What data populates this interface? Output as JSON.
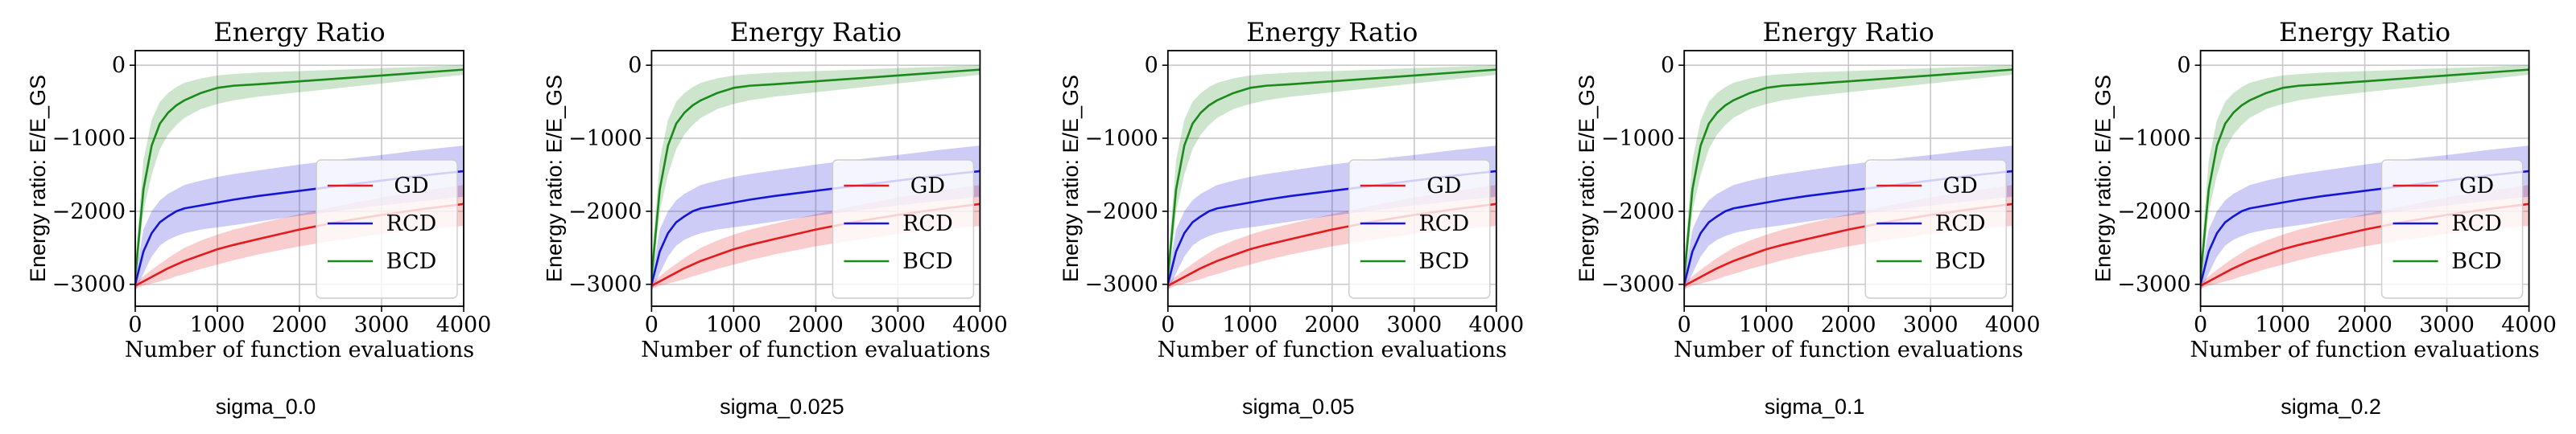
{
  "figure": {
    "panel_titles": [
      "sigma_0.0",
      "sigma_0.025",
      "sigma_0.05",
      "sigma_0.1",
      "sigma_0.2"
    ]
  },
  "colors": {
    "GD": "#e41a1c",
    "RCD": "#1515d4",
    "BCD": "#1a8a1a",
    "grid": "#c8c8c8"
  },
  "chart_data": [
    {
      "type": "line",
      "title": "Energy Ratio",
      "xlabel": "Number of function evaluations",
      "ylabel": "Energy ratio: E/E_GS",
      "xlim": [
        0,
        4000
      ],
      "ylim": [
        -3300,
        200
      ],
      "xticks": [
        0,
        1000,
        2000,
        3000,
        4000
      ],
      "yticks": [
        0,
        -1000,
        -2000,
        -3000
      ],
      "grid": true,
      "legend": "lower-right",
      "x": [
        0,
        100,
        200,
        300,
        400,
        500,
        600,
        800,
        1000,
        1200,
        1500,
        2000,
        2500,
        3000,
        3500,
        4000
      ],
      "series": [
        {
          "name": "GD",
          "values": [
            -3020,
            -2960,
            -2900,
            -2840,
            -2780,
            -2730,
            -2680,
            -2600,
            -2520,
            -2460,
            -2380,
            -2250,
            -2140,
            -2050,
            -1970,
            -1900
          ],
          "lower": [
            -3060,
            -3020,
            -2990,
            -2960,
            -2930,
            -2890,
            -2860,
            -2790,
            -2730,
            -2670,
            -2590,
            -2480,
            -2390,
            -2310,
            -2250,
            -2200
          ],
          "upper": [
            -2980,
            -2890,
            -2800,
            -2720,
            -2640,
            -2570,
            -2500,
            -2400,
            -2320,
            -2250,
            -2170,
            -2040,
            -1920,
            -1810,
            -1720,
            -1640
          ]
        },
        {
          "name": "RCD",
          "values": [
            -3000,
            -2550,
            -2300,
            -2150,
            -2070,
            -2000,
            -1960,
            -1920,
            -1880,
            -1840,
            -1790,
            -1720,
            -1650,
            -1580,
            -1510,
            -1450
          ],
          "lower": [
            -3100,
            -2850,
            -2620,
            -2470,
            -2390,
            -2340,
            -2300,
            -2250,
            -2220,
            -2190,
            -2140,
            -2060,
            -1990,
            -1920,
            -1860,
            -1800
          ],
          "upper": [
            -2900,
            -2250,
            -2000,
            -1850,
            -1760,
            -1700,
            -1640,
            -1580,
            -1530,
            -1490,
            -1440,
            -1360,
            -1290,
            -1230,
            -1160,
            -1100
          ]
        },
        {
          "name": "BCD",
          "values": [
            -2900,
            -1700,
            -1100,
            -800,
            -650,
            -550,
            -480,
            -380,
            -310,
            -280,
            -260,
            -220,
            -180,
            -140,
            -100,
            -60
          ],
          "lower": [
            -3000,
            -2000,
            -1500,
            -1150,
            -950,
            -820,
            -720,
            -600,
            -530,
            -480,
            -430,
            -370,
            -310,
            -250,
            -190,
            -130
          ],
          "upper": [
            -2700,
            -1300,
            -750,
            -500,
            -380,
            -300,
            -240,
            -180,
            -140,
            -120,
            -100,
            -80,
            -60,
            -40,
            -20,
            0
          ]
        }
      ]
    },
    {
      "type": "line",
      "title": "Energy Ratio",
      "xlabel": "Number of function evaluations",
      "ylabel": "Energy ratio: E/E_GS",
      "xlim": [
        0,
        4000
      ],
      "ylim": [
        -3300,
        200
      ],
      "xticks": [
        0,
        1000,
        2000,
        3000,
        4000
      ],
      "yticks": [
        0,
        -1000,
        -2000,
        -3000
      ],
      "grid": true,
      "legend": "lower-right",
      "x": [
        0,
        100,
        200,
        300,
        400,
        500,
        600,
        800,
        1000,
        1200,
        1500,
        2000,
        2500,
        3000,
        3500,
        4000
      ],
      "series": [
        {
          "name": "GD",
          "values": [
            -3020,
            -2960,
            -2900,
            -2840,
            -2780,
            -2730,
            -2680,
            -2600,
            -2520,
            -2460,
            -2380,
            -2250,
            -2140,
            -2050,
            -1970,
            -1900
          ],
          "lower": [
            -3060,
            -3020,
            -2990,
            -2960,
            -2930,
            -2890,
            -2860,
            -2790,
            -2730,
            -2670,
            -2590,
            -2480,
            -2390,
            -2310,
            -2250,
            -2200
          ],
          "upper": [
            -2980,
            -2890,
            -2800,
            -2720,
            -2640,
            -2570,
            -2500,
            -2400,
            -2320,
            -2250,
            -2170,
            -2040,
            -1920,
            -1810,
            -1720,
            -1640
          ]
        },
        {
          "name": "RCD",
          "values": [
            -3000,
            -2550,
            -2300,
            -2150,
            -2070,
            -2000,
            -1960,
            -1920,
            -1880,
            -1840,
            -1790,
            -1720,
            -1650,
            -1580,
            -1510,
            -1450
          ],
          "lower": [
            -3100,
            -2850,
            -2620,
            -2470,
            -2390,
            -2340,
            -2300,
            -2250,
            -2220,
            -2190,
            -2140,
            -2060,
            -1990,
            -1920,
            -1860,
            -1800
          ],
          "upper": [
            -2900,
            -2250,
            -2000,
            -1850,
            -1760,
            -1700,
            -1640,
            -1580,
            -1530,
            -1490,
            -1440,
            -1360,
            -1290,
            -1230,
            -1160,
            -1100
          ]
        },
        {
          "name": "BCD",
          "values": [
            -2900,
            -1700,
            -1100,
            -800,
            -650,
            -550,
            -480,
            -380,
            -310,
            -280,
            -260,
            -220,
            -180,
            -140,
            -100,
            -60
          ],
          "lower": [
            -3000,
            -2000,
            -1500,
            -1150,
            -950,
            -820,
            -720,
            -600,
            -530,
            -480,
            -430,
            -370,
            -310,
            -250,
            -190,
            -130
          ],
          "upper": [
            -2700,
            -1300,
            -750,
            -500,
            -380,
            -300,
            -240,
            -180,
            -140,
            -120,
            -100,
            -80,
            -60,
            -40,
            -20,
            0
          ]
        }
      ]
    },
    {
      "type": "line",
      "title": "Energy Ratio",
      "xlabel": "Number of function evaluations",
      "ylabel": "Energy ratio: E/E_GS",
      "xlim": [
        0,
        4000
      ],
      "ylim": [
        -3300,
        200
      ],
      "xticks": [
        0,
        1000,
        2000,
        3000,
        4000
      ],
      "yticks": [
        0,
        -1000,
        -2000,
        -3000
      ],
      "grid": true,
      "legend": "lower-right",
      "x": [
        0,
        100,
        200,
        300,
        400,
        500,
        600,
        800,
        1000,
        1200,
        1500,
        2000,
        2500,
        3000,
        3500,
        4000
      ],
      "series": [
        {
          "name": "GD",
          "values": [
            -3020,
            -2960,
            -2900,
            -2840,
            -2780,
            -2730,
            -2680,
            -2600,
            -2520,
            -2460,
            -2380,
            -2250,
            -2140,
            -2050,
            -1970,
            -1900
          ],
          "lower": [
            -3060,
            -3020,
            -2990,
            -2960,
            -2930,
            -2890,
            -2860,
            -2790,
            -2730,
            -2670,
            -2590,
            -2480,
            -2390,
            -2310,
            -2250,
            -2200
          ],
          "upper": [
            -2980,
            -2890,
            -2800,
            -2720,
            -2640,
            -2570,
            -2500,
            -2400,
            -2320,
            -2250,
            -2170,
            -2040,
            -1920,
            -1810,
            -1720,
            -1640
          ]
        },
        {
          "name": "RCD",
          "values": [
            -3000,
            -2550,
            -2300,
            -2150,
            -2070,
            -2000,
            -1960,
            -1920,
            -1880,
            -1840,
            -1790,
            -1720,
            -1650,
            -1580,
            -1510,
            -1450
          ],
          "lower": [
            -3100,
            -2850,
            -2620,
            -2470,
            -2390,
            -2340,
            -2300,
            -2250,
            -2220,
            -2190,
            -2140,
            -2060,
            -1990,
            -1920,
            -1860,
            -1800
          ],
          "upper": [
            -2900,
            -2250,
            -2000,
            -1850,
            -1760,
            -1700,
            -1640,
            -1580,
            -1530,
            -1490,
            -1440,
            -1360,
            -1290,
            -1230,
            -1160,
            -1100
          ]
        },
        {
          "name": "BCD",
          "values": [
            -2900,
            -1700,
            -1100,
            -800,
            -650,
            -550,
            -480,
            -380,
            -310,
            -280,
            -260,
            -220,
            -180,
            -140,
            -100,
            -60
          ],
          "lower": [
            -3000,
            -2000,
            -1500,
            -1150,
            -950,
            -820,
            -720,
            -600,
            -530,
            -480,
            -430,
            -370,
            -310,
            -250,
            -190,
            -130
          ],
          "upper": [
            -2700,
            -1300,
            -750,
            -500,
            -380,
            -300,
            -240,
            -180,
            -140,
            -120,
            -100,
            -80,
            -60,
            -40,
            -20,
            0
          ]
        }
      ]
    },
    {
      "type": "line",
      "title": "Energy Ratio",
      "xlabel": "Number of function evaluations",
      "ylabel": "Energy ratio: E/E_GS",
      "xlim": [
        0,
        4000
      ],
      "ylim": [
        -3300,
        200
      ],
      "xticks": [
        0,
        1000,
        2000,
        3000,
        4000
      ],
      "yticks": [
        0,
        -1000,
        -2000,
        -3000
      ],
      "grid": true,
      "legend": "lower-right",
      "x": [
        0,
        100,
        200,
        300,
        400,
        500,
        600,
        800,
        1000,
        1200,
        1500,
        2000,
        2500,
        3000,
        3500,
        4000
      ],
      "series": [
        {
          "name": "GD",
          "values": [
            -3020,
            -2960,
            -2900,
            -2840,
            -2780,
            -2730,
            -2680,
            -2600,
            -2520,
            -2460,
            -2380,
            -2250,
            -2140,
            -2050,
            -1970,
            -1900
          ],
          "lower": [
            -3060,
            -3020,
            -2990,
            -2960,
            -2930,
            -2890,
            -2860,
            -2790,
            -2730,
            -2670,
            -2590,
            -2480,
            -2390,
            -2310,
            -2250,
            -2200
          ],
          "upper": [
            -2980,
            -2890,
            -2800,
            -2720,
            -2640,
            -2570,
            -2500,
            -2400,
            -2320,
            -2250,
            -2170,
            -2040,
            -1920,
            -1810,
            -1720,
            -1640
          ]
        },
        {
          "name": "RCD",
          "values": [
            -3000,
            -2550,
            -2300,
            -2150,
            -2070,
            -2000,
            -1960,
            -1920,
            -1880,
            -1840,
            -1790,
            -1720,
            -1650,
            -1580,
            -1510,
            -1450
          ],
          "lower": [
            -3100,
            -2850,
            -2620,
            -2470,
            -2390,
            -2340,
            -2300,
            -2250,
            -2220,
            -2190,
            -2140,
            -2060,
            -1990,
            -1920,
            -1860,
            -1800
          ],
          "upper": [
            -2900,
            -2250,
            -2000,
            -1850,
            -1760,
            -1700,
            -1640,
            -1580,
            -1530,
            -1490,
            -1440,
            -1360,
            -1290,
            -1230,
            -1160,
            -1100
          ]
        },
        {
          "name": "BCD",
          "values": [
            -2900,
            -1700,
            -1100,
            -800,
            -650,
            -550,
            -480,
            -380,
            -310,
            -280,
            -260,
            -220,
            -180,
            -140,
            -100,
            -60
          ],
          "lower": [
            -3000,
            -2000,
            -1500,
            -1150,
            -950,
            -820,
            -720,
            -600,
            -530,
            -480,
            -430,
            -370,
            -310,
            -250,
            -190,
            -130
          ],
          "upper": [
            -2700,
            -1300,
            -750,
            -500,
            -380,
            -300,
            -240,
            -180,
            -140,
            -120,
            -100,
            -80,
            -60,
            -40,
            -20,
            0
          ]
        }
      ]
    },
    {
      "type": "line",
      "title": "Energy Ratio",
      "xlabel": "Number of function evaluations",
      "ylabel": "Energy ratio: E/E_GS",
      "xlim": [
        0,
        4000
      ],
      "ylim": [
        -3300,
        200
      ],
      "xticks": [
        0,
        1000,
        2000,
        3000,
        4000
      ],
      "yticks": [
        0,
        -1000,
        -2000,
        -3000
      ],
      "grid": true,
      "legend": "lower-right",
      "x": [
        0,
        100,
        200,
        300,
        400,
        500,
        600,
        800,
        1000,
        1200,
        1500,
        2000,
        2500,
        3000,
        3500,
        4000
      ],
      "series": [
        {
          "name": "GD",
          "values": [
            -3020,
            -2960,
            -2900,
            -2840,
            -2780,
            -2730,
            -2680,
            -2600,
            -2520,
            -2460,
            -2380,
            -2250,
            -2140,
            -2050,
            -1970,
            -1900
          ],
          "lower": [
            -3060,
            -3020,
            -2990,
            -2960,
            -2930,
            -2890,
            -2860,
            -2790,
            -2730,
            -2670,
            -2590,
            -2480,
            -2390,
            -2310,
            -2250,
            -2200
          ],
          "upper": [
            -2980,
            -2890,
            -2800,
            -2720,
            -2640,
            -2570,
            -2500,
            -2400,
            -2320,
            -2250,
            -2170,
            -2040,
            -1920,
            -1810,
            -1720,
            -1640
          ]
        },
        {
          "name": "RCD",
          "values": [
            -3000,
            -2550,
            -2300,
            -2150,
            -2070,
            -2000,
            -1960,
            -1920,
            -1880,
            -1840,
            -1790,
            -1720,
            -1650,
            -1580,
            -1510,
            -1450
          ],
          "lower": [
            -3100,
            -2850,
            -2620,
            -2470,
            -2390,
            -2340,
            -2300,
            -2250,
            -2220,
            -2190,
            -2140,
            -2060,
            -1990,
            -1920,
            -1860,
            -1800
          ],
          "upper": [
            -2900,
            -2250,
            -2000,
            -1850,
            -1760,
            -1700,
            -1640,
            -1580,
            -1530,
            -1490,
            -1440,
            -1360,
            -1290,
            -1230,
            -1160,
            -1100
          ]
        },
        {
          "name": "BCD",
          "values": [
            -2900,
            -1700,
            -1100,
            -800,
            -650,
            -550,
            -480,
            -380,
            -310,
            -280,
            -260,
            -220,
            -180,
            -140,
            -100,
            -60
          ],
          "lower": [
            -3000,
            -2000,
            -1500,
            -1150,
            -950,
            -820,
            -720,
            -600,
            -530,
            -480,
            -430,
            -370,
            -310,
            -250,
            -190,
            -130
          ],
          "upper": [
            -2700,
            -1300,
            -750,
            -500,
            -380,
            -300,
            -240,
            -180,
            -140,
            -120,
            -100,
            -80,
            -60,
            -40,
            -20,
            0
          ]
        }
      ]
    }
  ]
}
